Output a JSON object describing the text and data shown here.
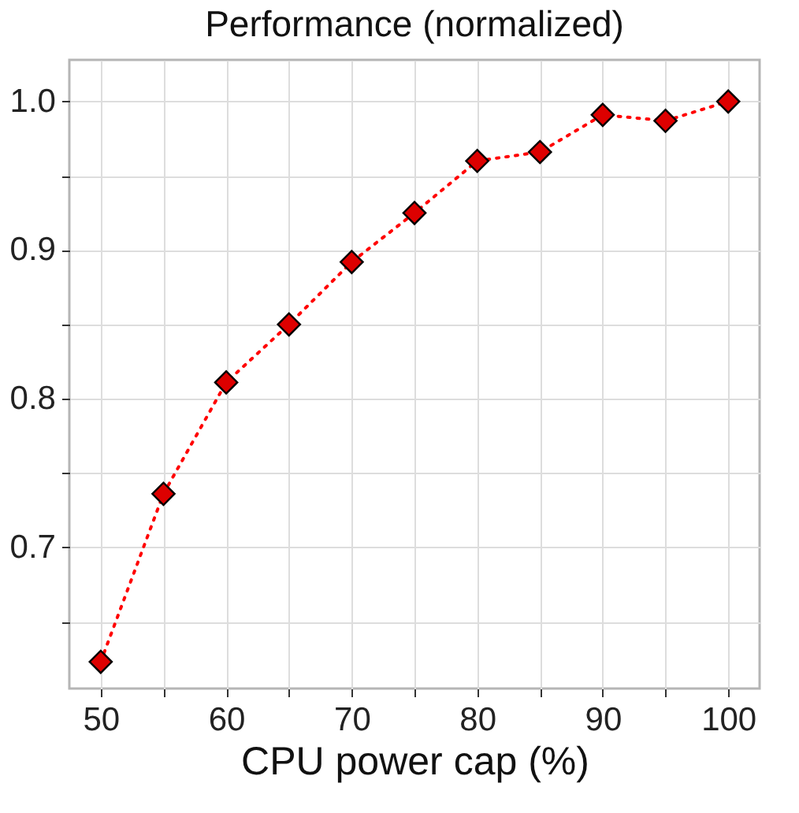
{
  "chart_data": {
    "type": "line",
    "title": "Performance (normalized)",
    "xlabel": "CPU power cap (%)",
    "x": [
      50,
      55,
      60,
      65,
      70,
      75,
      80,
      85,
      90,
      95,
      100
    ],
    "series": [
      {
        "color": "#ff0000",
        "values": [
          0.623,
          0.736,
          0.811,
          0.85,
          0.892,
          0.925,
          0.96,
          0.966,
          0.991,
          0.987,
          1.0
        ]
      }
    ],
    "marker": "diamond",
    "line_style": "dotted",
    "grid": true,
    "xlim": [
      47.5,
      102.5
    ],
    "xticks": [
      50,
      {
        "value": 55,
        "label": null
      },
      60,
      {
        "value": 65,
        "label": null
      },
      70,
      {
        "value": 75,
        "label": null
      },
      80,
      {
        "value": 85,
        "label": null
      },
      90,
      {
        "value": 95,
        "label": null
      },
      100
    ],
    "ylim": [
      0.605,
      1.028
    ],
    "yticks": [
      {
        "value": 0.65,
        "label": null
      },
      0.7,
      {
        "value": 0.75,
        "label": null
      },
      0.8,
      {
        "value": 0.85,
        "label": null
      },
      0.9,
      {
        "value": 0.95,
        "label": null
      },
      {
        "value": 1.0,
        "label": "1.0"
      }
    ]
  }
}
